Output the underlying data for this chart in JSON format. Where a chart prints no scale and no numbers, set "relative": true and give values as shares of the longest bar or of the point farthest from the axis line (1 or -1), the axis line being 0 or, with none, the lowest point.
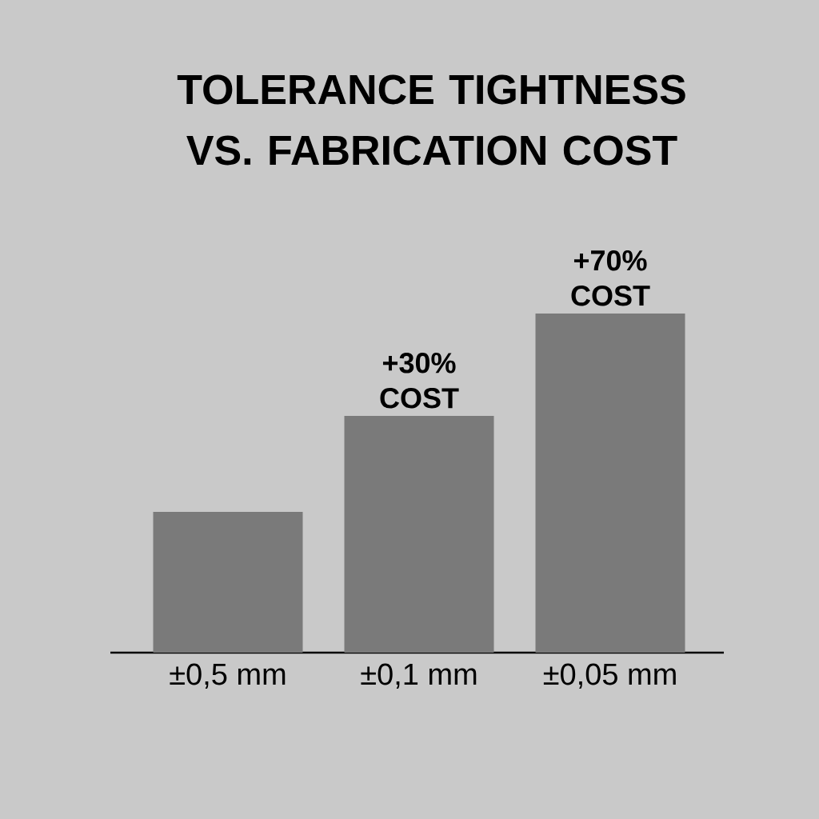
{
  "chart_data": {
    "type": "bar",
    "title": "TOLERANCE TIGHTNESS VS. FABRICATION COST",
    "categories": [
      "±0,5 mm",
      "±0,1 mm",
      "±0,05 mm"
    ],
    "values": [
      0.415,
      0.698,
      1
    ],
    "color": "#7a7a7a",
    "annotations": [
      {
        "text": "+30% COST",
        "x": "±0,1 mm",
        "y": 0.698
      },
      {
        "text": "+70% COST",
        "x": "±0,05 mm",
        "y": 1
      }
    ],
    "relative": true
  }
}
